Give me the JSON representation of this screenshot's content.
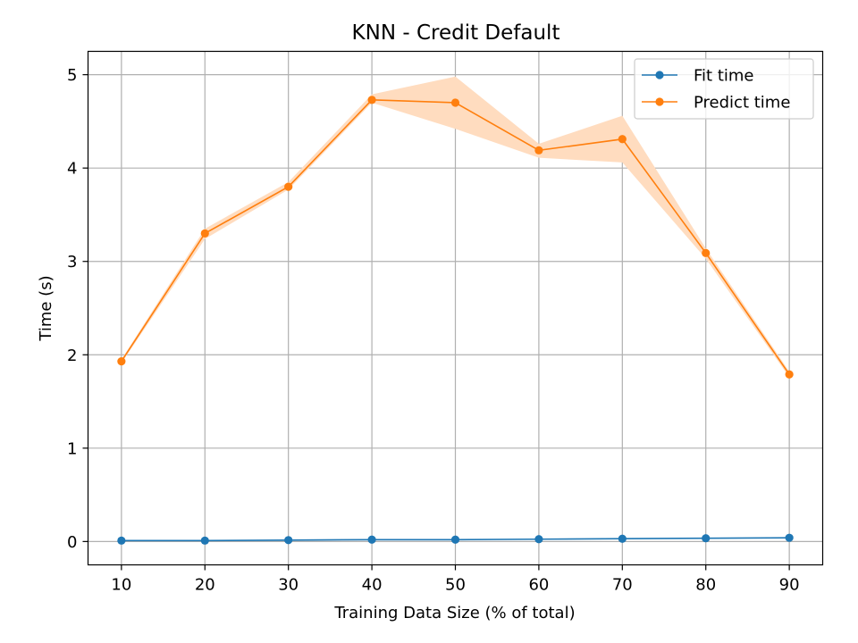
{
  "chart_data": {
    "type": "line",
    "title": "KNN - Credit Default",
    "xlabel": "Training Data Size (% of total)",
    "ylabel": "Time (s)",
    "x": [
      10,
      20,
      30,
      40,
      50,
      60,
      70,
      80,
      90
    ],
    "xlim": [
      6,
      94
    ],
    "ylim": [
      -0.25,
      5.25
    ],
    "xticks": [
      10,
      20,
      30,
      40,
      50,
      60,
      70,
      80,
      90
    ],
    "yticks": [
      0,
      1,
      2,
      3,
      4,
      5
    ],
    "grid": true,
    "legend_position": "top-right",
    "series": [
      {
        "name": "Fit time",
        "color": "#1f77b4",
        "values": [
          0.01,
          0.01,
          0.015,
          0.02,
          0.02,
          0.025,
          0.03,
          0.035,
          0.04
        ],
        "band_low": [
          0.005,
          0.005,
          0.01,
          0.015,
          0.015,
          0.02,
          0.025,
          0.03,
          0.035
        ],
        "band_high": [
          0.015,
          0.015,
          0.02,
          0.025,
          0.025,
          0.03,
          0.035,
          0.04,
          0.045
        ]
      },
      {
        "name": "Predict time",
        "color": "#ff7f0e",
        "band_color": "#ffdcbf",
        "values": [
          1.93,
          3.3,
          3.8,
          4.73,
          4.7,
          4.19,
          4.31,
          3.09,
          1.79
        ],
        "band_low": [
          1.91,
          3.24,
          3.77,
          4.7,
          4.42,
          4.11,
          4.06,
          3.03,
          1.76
        ],
        "band_high": [
          1.95,
          3.35,
          3.85,
          4.79,
          4.98,
          4.26,
          4.56,
          3.14,
          1.82
        ]
      }
    ]
  }
}
